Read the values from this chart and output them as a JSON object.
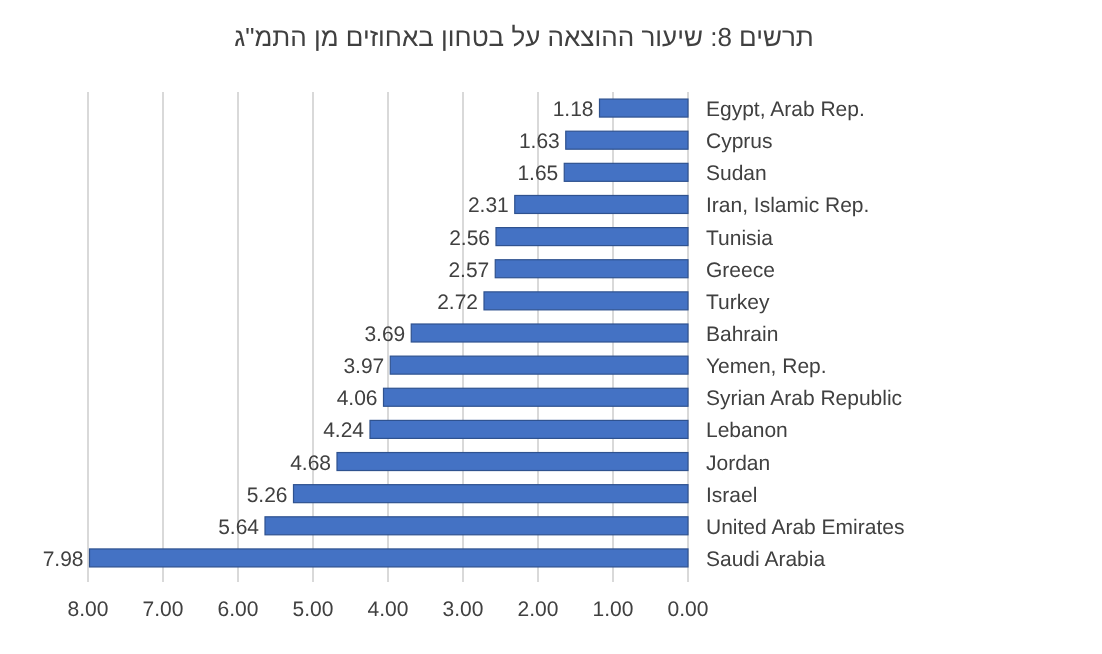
{
  "chart_data": {
    "type": "bar",
    "orientation": "horizontal",
    "title": "תרשים 8: שיעור ההוצאה על בטחון באחוזים מן התמ\"ג",
    "categories": [
      "Egypt, Arab Rep.",
      "Cyprus",
      "Sudan",
      "Iran, Islamic Rep.",
      "Tunisia",
      "Greece",
      "Turkey",
      "Bahrain",
      "Yemen, Rep.",
      "Syrian Arab Republic",
      "Lebanon",
      "Jordan",
      "Israel",
      "United Arab Emirates",
      "Saudi Arabia"
    ],
    "values": [
      1.18,
      1.63,
      1.65,
      2.31,
      2.56,
      2.57,
      2.72,
      3.69,
      3.97,
      4.06,
      4.24,
      4.68,
      5.26,
      5.64,
      7.98
    ],
    "color": "#4472c4",
    "data_labels": true,
    "xlim": [
      8,
      0
    ],
    "xticks": [
      {
        "value": 8,
        "label": "8.00"
      },
      {
        "value": 7,
        "label": "7.00"
      },
      {
        "value": 6,
        "label": "6.00"
      },
      {
        "value": 5,
        "label": "5.00"
      },
      {
        "value": 4,
        "label": "4.00"
      },
      {
        "value": 3,
        "label": "3.00"
      },
      {
        "value": 2,
        "label": "2.00"
      },
      {
        "value": 1,
        "label": "1.00"
      },
      {
        "value": 0,
        "label": "0.00"
      }
    ],
    "grid": "x"
  }
}
